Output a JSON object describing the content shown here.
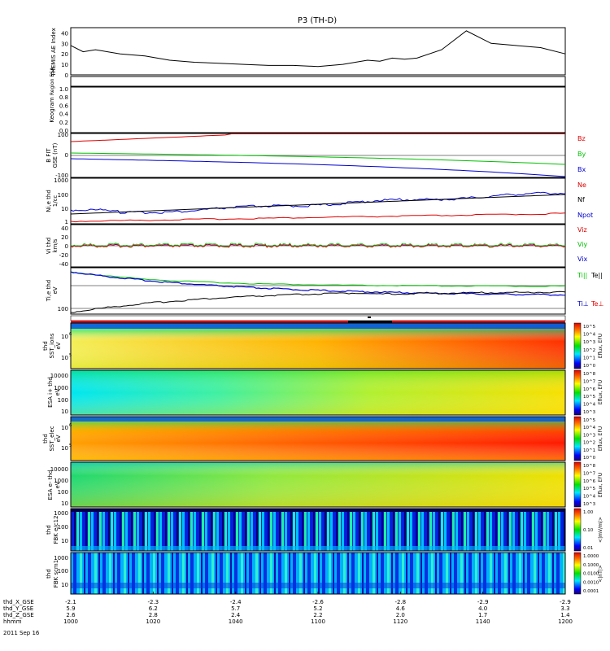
{
  "title": "P3 (TH-D)",
  "date_label": "2011 Sep 16",
  "xaxis": {
    "hhmm_label": "hhmm",
    "rows": [
      {
        "label": "thd_X_GSE",
        "values": [
          "-2.1",
          "-2.3",
          "-2.4",
          "-2.6",
          "-2.8",
          "-2.9",
          "-2.9"
        ]
      },
      {
        "label": "thd_Y_GSE",
        "values": [
          "5.9",
          "6.2",
          "5.7",
          "5.2",
          "4.6",
          "4.0",
          "3.3"
        ]
      },
      {
        "label": "thd_Z_GSE",
        "values": [
          "2.6",
          "2.8",
          "2.4",
          "2.2",
          "2.0",
          "1.7",
          "1.4"
        ]
      },
      {
        "label": "hhmm",
        "values": [
          "1000",
          "1020",
          "1040",
          "1100",
          "1120",
          "1140",
          "1200"
        ]
      }
    ]
  },
  "panels": {
    "ae": {
      "ylabel": "THEMIS AE Index",
      "ticks": [
        "0",
        "10",
        "20",
        "30",
        "40"
      ]
    },
    "region": {
      "ylabel": "Region ESA"
    },
    "keogram": {
      "ylabel": "Keogram",
      "ticks": [
        "0.0",
        "0.2",
        "0.4",
        "0.6",
        "0.8",
        "1.0"
      ]
    },
    "bfit": {
      "ylabel_1": "B FIT",
      "ylabel_2": "GSE (nT)",
      "ticks": [
        "-100",
        "0",
        "100"
      ],
      "legend": [
        "Bz",
        "By",
        "Bx"
      ],
      "colors": [
        "#e00000",
        "#00c000",
        "#0000d0"
      ]
    },
    "density": {
      "ylabel_1": "Ni,e thd",
      "ylabel_2": "1/cc",
      "ticks": [
        "1",
        "10",
        "100",
        "1000"
      ],
      "legend": [
        "Ne",
        "Nf",
        "Npot"
      ],
      "colors": [
        "#e00000",
        "#000000",
        "#0000d0"
      ]
    },
    "velocity": {
      "ylabel_1": "Vi thd",
      "ylabel_2": "km/s",
      "ticks": [
        "-40",
        "-20",
        "0",
        "20",
        "40"
      ],
      "legend": [
        "Viz",
        "Viy",
        "Vix"
      ],
      "colors": [
        "#e00000",
        "#00c000",
        "#0000d0"
      ]
    },
    "temp": {
      "ylabel_1": "Ti,e thd",
      "ylabel_2": "eV",
      "tick": "100",
      "legend_a1": "Ti||",
      "legend_a2": "Te||",
      "legend_b1": "Ti⊥",
      "legend_b2": "Te⊥"
    },
    "sst_ions": {
      "ylabel_1": "thd",
      "ylabel_2": "SST_ions",
      "ylabel_3": "eV"
    },
    "esa_ions": {
      "ylabel_1": "ESA i+ thd",
      "ylabel_2": "eV",
      "ticks": [
        "10",
        "100",
        "1000",
        "10000"
      ]
    },
    "sst_elec": {
      "ylabel_1": "thd",
      "ylabel_2": "SST_elec",
      "ylabel_3": "eV"
    },
    "esa_elec": {
      "ylabel_1": "ESA e- thd",
      "ylabel_2": "eV",
      "ticks": [
        "10",
        "100",
        "1000",
        "10000"
      ]
    },
    "fbk_e": {
      "ylabel_1": "thd",
      "ylabel_2": "FBK e/c12",
      "ticks": [
        "10",
        "100",
        "1000"
      ]
    },
    "fbk_b": {
      "ylabel_1": "thd",
      "ylabel_2": "FBK scm1",
      "ticks": [
        "10",
        "100",
        "1000"
      ]
    }
  },
  "colorbars": {
    "eflux_label": "Eflux, EFU",
    "eflux_ticks": [
      "10^8",
      "10^7",
      "10^6",
      "10^5",
      "10^4",
      "10^3"
    ],
    "sst_ticks_ions": [
      "10^5",
      "10^4",
      "10^3",
      "10^2",
      "10^1",
      "10^0"
    ],
    "fbk_e_label": "<|mV/m|>",
    "fbk_e_ticks": [
      "1.00",
      "0.10",
      "0.01"
    ],
    "fbk_b_label": "<|nT|>",
    "fbk_b_ticks": [
      "1.0000",
      "0.1000",
      "0.0100",
      "0.0010",
      "0.0001"
    ]
  },
  "chart_data": {
    "type": "line",
    "title": "P3 (TH-D)",
    "x_ticks": [
      "1000",
      "1020",
      "1040",
      "1100",
      "1120",
      "1140",
      "1200"
    ],
    "ae_index": {
      "x_min": [
        0,
        5,
        10,
        20,
        30,
        40,
        50,
        60,
        70,
        80,
        90,
        100,
        110,
        120,
        125,
        130,
        135,
        140,
        150,
        160,
        170,
        180,
        190,
        200
      ],
      "values": [
        28,
        22,
        24,
        20,
        18,
        14,
        12,
        11,
        10,
        9,
        9,
        8,
        10,
        14,
        13,
        16,
        15,
        16,
        24,
        42,
        30,
        28,
        26,
        20
      ],
      "ylim": [
        0,
        45
      ]
    },
    "bfit_ylim": [
      -100,
      100
    ],
    "vi_ylim": [
      -50,
      50
    ],
    "density_ylim_log": [
      1,
      1000
    ]
  }
}
